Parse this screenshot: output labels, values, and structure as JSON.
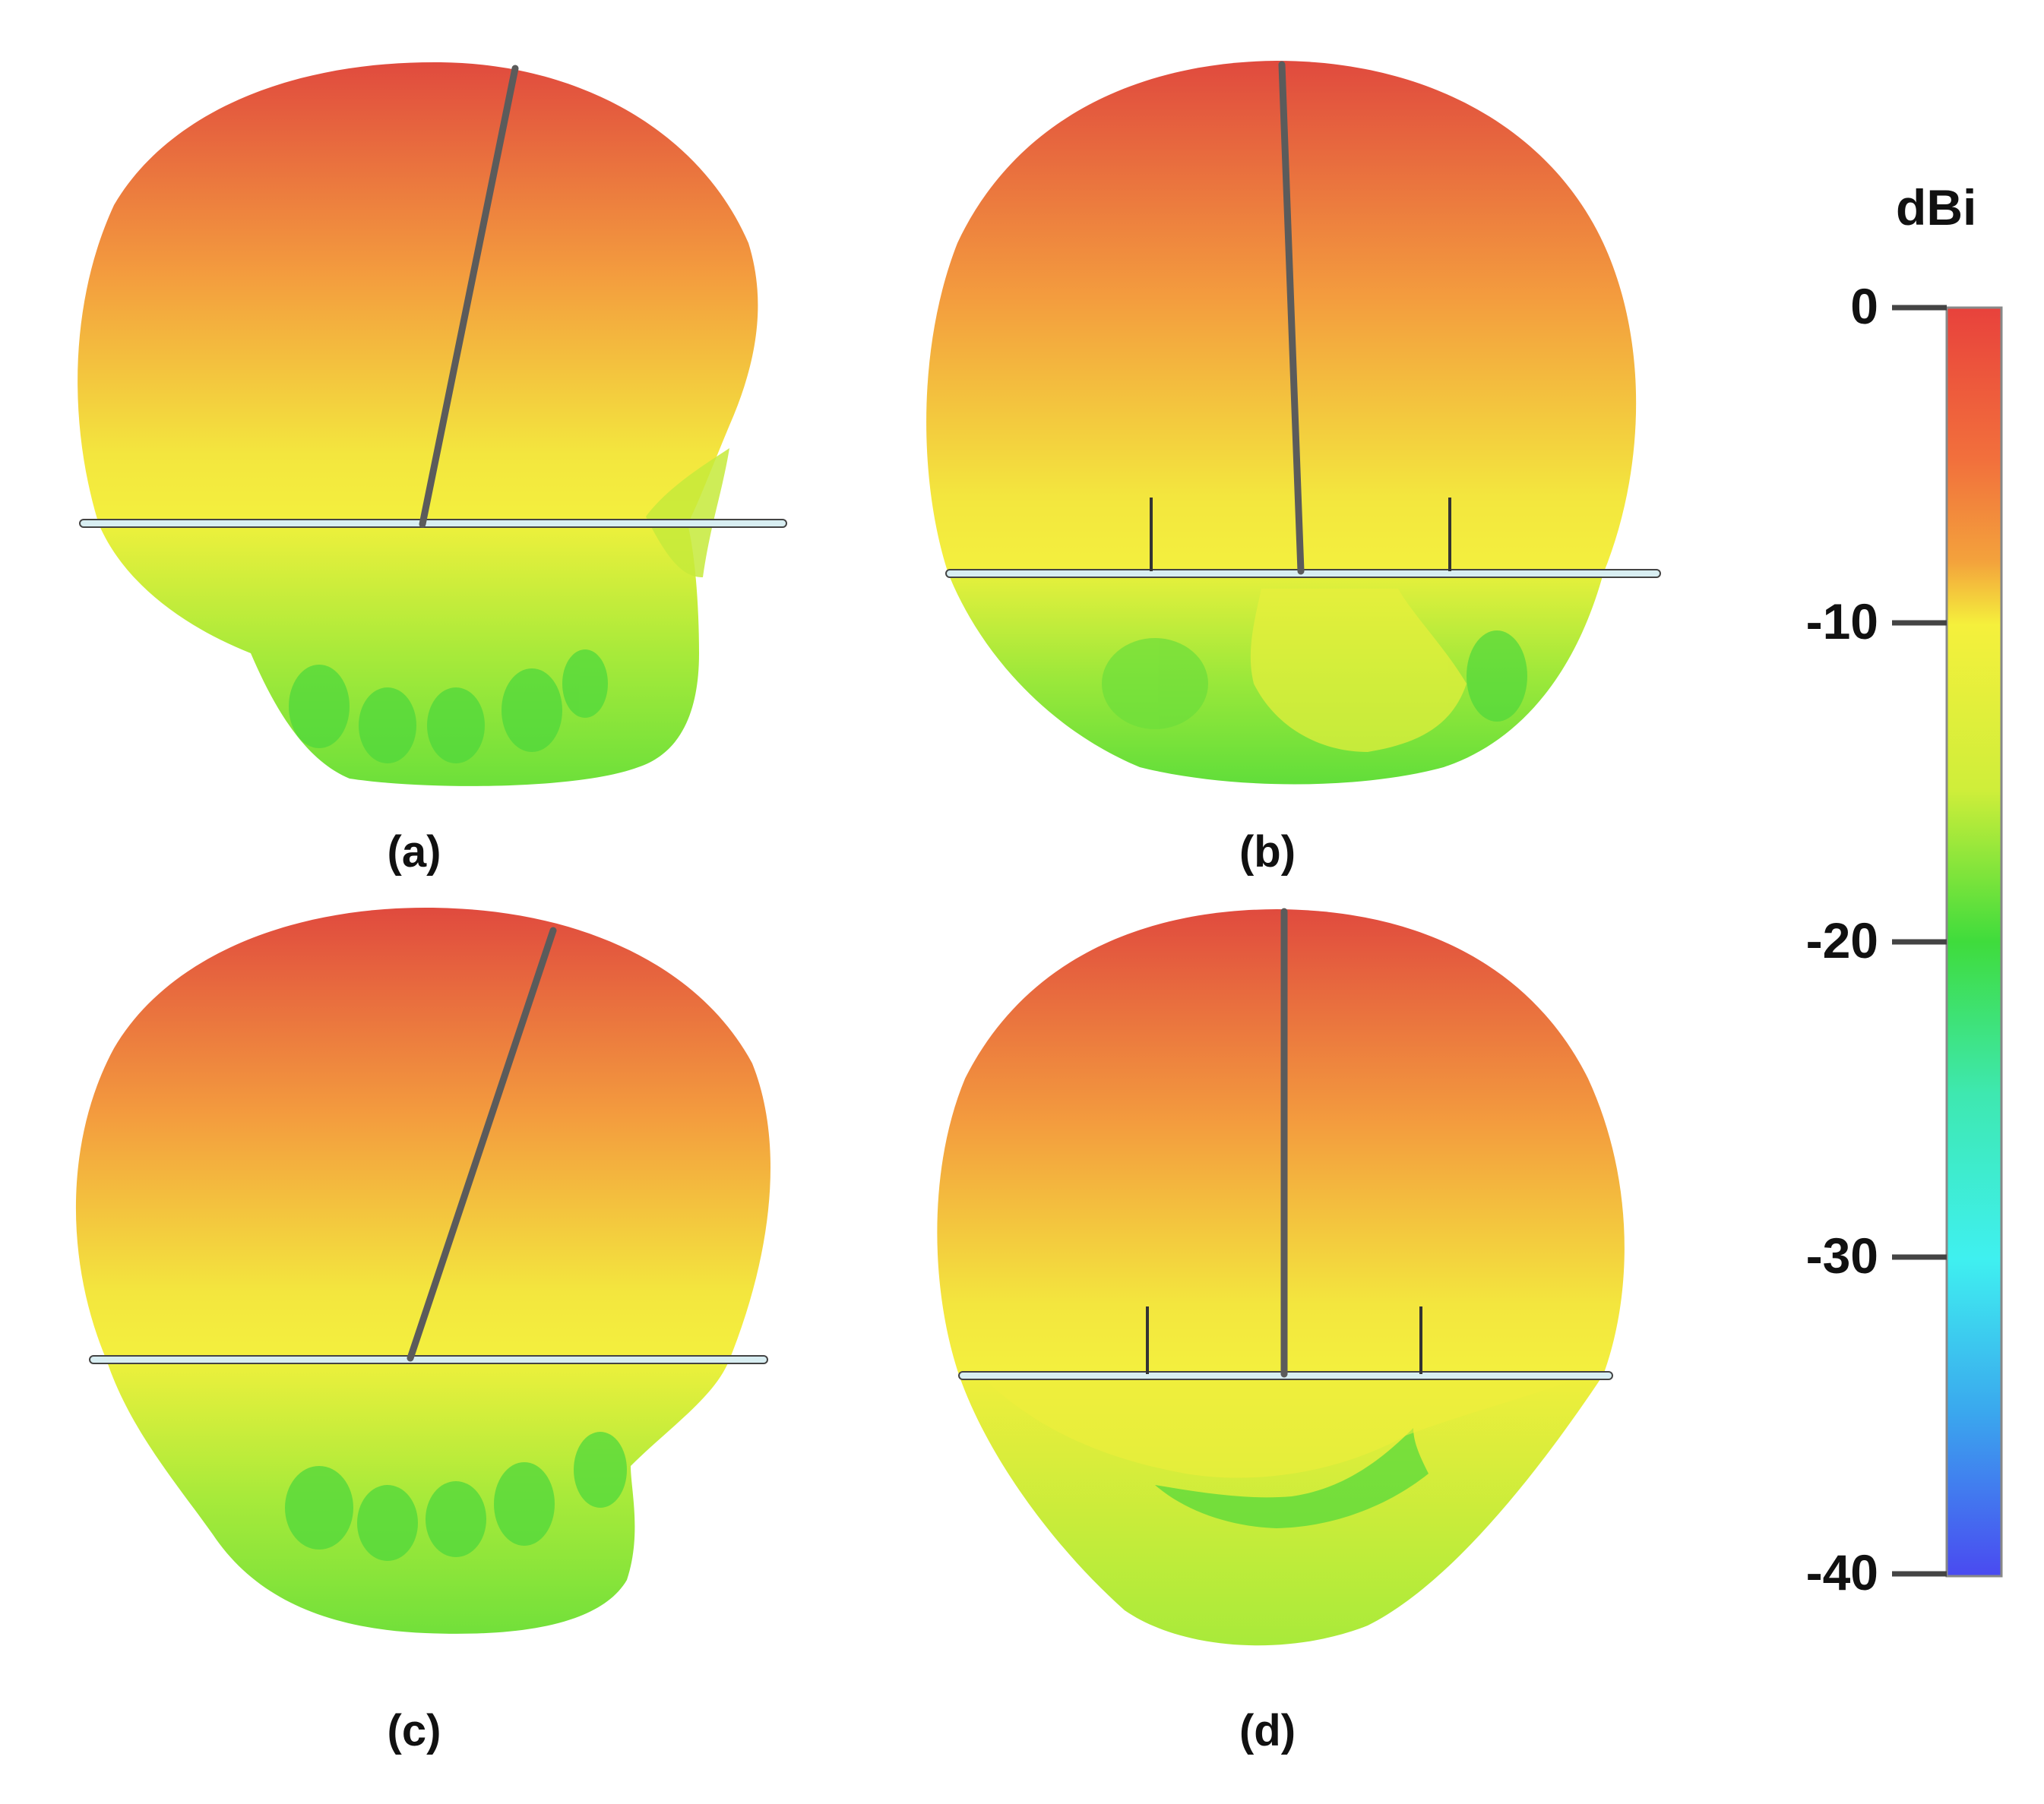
{
  "figure": {
    "panels": [
      {
        "id": "a",
        "caption": "(a)"
      },
      {
        "id": "b",
        "caption": "(b)"
      },
      {
        "id": "c",
        "caption": "(c)"
      },
      {
        "id": "d",
        "caption": "(d)"
      }
    ]
  },
  "colorbar": {
    "title": "dBi",
    "ticks": [
      "0",
      "-10",
      "-20",
      "-30",
      "-40"
    ],
    "range": [
      -40,
      0
    ],
    "colors": {
      "max": "#e8423c",
      "high": "#f2883a",
      "mid_high": "#f6c43c",
      "mid": "#f2f23a",
      "mid_low": "#cfee3a",
      "low": "#3fdc3c",
      "lower": "#3ff0e6",
      "min": "#4a4af0"
    }
  }
}
